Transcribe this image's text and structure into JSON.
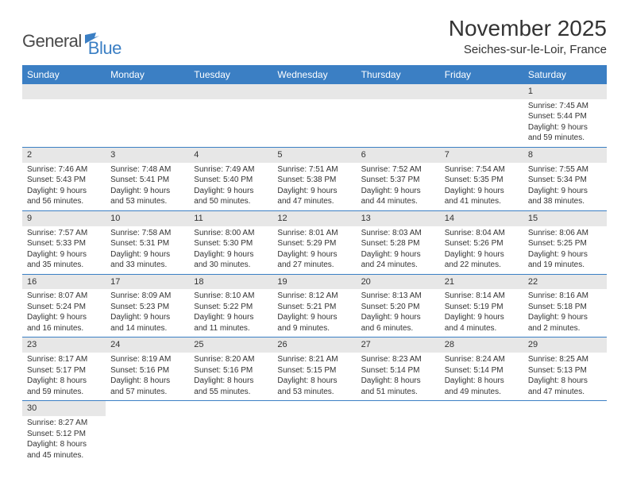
{
  "logo": {
    "text1": "General",
    "text2": "Blue"
  },
  "title": "November 2025",
  "location": "Seiches-sur-le-Loir, France",
  "colors": {
    "header_bg": "#3b7fc4",
    "header_text": "#ffffff",
    "daynum_bg": "#e7e7e7",
    "border": "#3b7fc4",
    "text": "#333333",
    "background": "#ffffff"
  },
  "typography": {
    "title_fontsize": 28,
    "location_fontsize": 15,
    "header_fontsize": 12,
    "daynum_fontsize": 11,
    "cell_fontsize": 10
  },
  "days_of_week": [
    "Sunday",
    "Monday",
    "Tuesday",
    "Wednesday",
    "Thursday",
    "Friday",
    "Saturday"
  ],
  "weeks": [
    [
      null,
      null,
      null,
      null,
      null,
      null,
      {
        "n": "1",
        "sunrise": "Sunrise: 7:45 AM",
        "sunset": "Sunset: 5:44 PM",
        "daylight": "Daylight: 9 hours and 59 minutes."
      }
    ],
    [
      {
        "n": "2",
        "sunrise": "Sunrise: 7:46 AM",
        "sunset": "Sunset: 5:43 PM",
        "daylight": "Daylight: 9 hours and 56 minutes."
      },
      {
        "n": "3",
        "sunrise": "Sunrise: 7:48 AM",
        "sunset": "Sunset: 5:41 PM",
        "daylight": "Daylight: 9 hours and 53 minutes."
      },
      {
        "n": "4",
        "sunrise": "Sunrise: 7:49 AM",
        "sunset": "Sunset: 5:40 PM",
        "daylight": "Daylight: 9 hours and 50 minutes."
      },
      {
        "n": "5",
        "sunrise": "Sunrise: 7:51 AM",
        "sunset": "Sunset: 5:38 PM",
        "daylight": "Daylight: 9 hours and 47 minutes."
      },
      {
        "n": "6",
        "sunrise": "Sunrise: 7:52 AM",
        "sunset": "Sunset: 5:37 PM",
        "daylight": "Daylight: 9 hours and 44 minutes."
      },
      {
        "n": "7",
        "sunrise": "Sunrise: 7:54 AM",
        "sunset": "Sunset: 5:35 PM",
        "daylight": "Daylight: 9 hours and 41 minutes."
      },
      {
        "n": "8",
        "sunrise": "Sunrise: 7:55 AM",
        "sunset": "Sunset: 5:34 PM",
        "daylight": "Daylight: 9 hours and 38 minutes."
      }
    ],
    [
      {
        "n": "9",
        "sunrise": "Sunrise: 7:57 AM",
        "sunset": "Sunset: 5:33 PM",
        "daylight": "Daylight: 9 hours and 35 minutes."
      },
      {
        "n": "10",
        "sunrise": "Sunrise: 7:58 AM",
        "sunset": "Sunset: 5:31 PM",
        "daylight": "Daylight: 9 hours and 33 minutes."
      },
      {
        "n": "11",
        "sunrise": "Sunrise: 8:00 AM",
        "sunset": "Sunset: 5:30 PM",
        "daylight": "Daylight: 9 hours and 30 minutes."
      },
      {
        "n": "12",
        "sunrise": "Sunrise: 8:01 AM",
        "sunset": "Sunset: 5:29 PM",
        "daylight": "Daylight: 9 hours and 27 minutes."
      },
      {
        "n": "13",
        "sunrise": "Sunrise: 8:03 AM",
        "sunset": "Sunset: 5:28 PM",
        "daylight": "Daylight: 9 hours and 24 minutes."
      },
      {
        "n": "14",
        "sunrise": "Sunrise: 8:04 AM",
        "sunset": "Sunset: 5:26 PM",
        "daylight": "Daylight: 9 hours and 22 minutes."
      },
      {
        "n": "15",
        "sunrise": "Sunrise: 8:06 AM",
        "sunset": "Sunset: 5:25 PM",
        "daylight": "Daylight: 9 hours and 19 minutes."
      }
    ],
    [
      {
        "n": "16",
        "sunrise": "Sunrise: 8:07 AM",
        "sunset": "Sunset: 5:24 PM",
        "daylight": "Daylight: 9 hours and 16 minutes."
      },
      {
        "n": "17",
        "sunrise": "Sunrise: 8:09 AM",
        "sunset": "Sunset: 5:23 PM",
        "daylight": "Daylight: 9 hours and 14 minutes."
      },
      {
        "n": "18",
        "sunrise": "Sunrise: 8:10 AM",
        "sunset": "Sunset: 5:22 PM",
        "daylight": "Daylight: 9 hours and 11 minutes."
      },
      {
        "n": "19",
        "sunrise": "Sunrise: 8:12 AM",
        "sunset": "Sunset: 5:21 PM",
        "daylight": "Daylight: 9 hours and 9 minutes."
      },
      {
        "n": "20",
        "sunrise": "Sunrise: 8:13 AM",
        "sunset": "Sunset: 5:20 PM",
        "daylight": "Daylight: 9 hours and 6 minutes."
      },
      {
        "n": "21",
        "sunrise": "Sunrise: 8:14 AM",
        "sunset": "Sunset: 5:19 PM",
        "daylight": "Daylight: 9 hours and 4 minutes."
      },
      {
        "n": "22",
        "sunrise": "Sunrise: 8:16 AM",
        "sunset": "Sunset: 5:18 PM",
        "daylight": "Daylight: 9 hours and 2 minutes."
      }
    ],
    [
      {
        "n": "23",
        "sunrise": "Sunrise: 8:17 AM",
        "sunset": "Sunset: 5:17 PM",
        "daylight": "Daylight: 8 hours and 59 minutes."
      },
      {
        "n": "24",
        "sunrise": "Sunrise: 8:19 AM",
        "sunset": "Sunset: 5:16 PM",
        "daylight": "Daylight: 8 hours and 57 minutes."
      },
      {
        "n": "25",
        "sunrise": "Sunrise: 8:20 AM",
        "sunset": "Sunset: 5:16 PM",
        "daylight": "Daylight: 8 hours and 55 minutes."
      },
      {
        "n": "26",
        "sunrise": "Sunrise: 8:21 AM",
        "sunset": "Sunset: 5:15 PM",
        "daylight": "Daylight: 8 hours and 53 minutes."
      },
      {
        "n": "27",
        "sunrise": "Sunrise: 8:23 AM",
        "sunset": "Sunset: 5:14 PM",
        "daylight": "Daylight: 8 hours and 51 minutes."
      },
      {
        "n": "28",
        "sunrise": "Sunrise: 8:24 AM",
        "sunset": "Sunset: 5:14 PM",
        "daylight": "Daylight: 8 hours and 49 minutes."
      },
      {
        "n": "29",
        "sunrise": "Sunrise: 8:25 AM",
        "sunset": "Sunset: 5:13 PM",
        "daylight": "Daylight: 8 hours and 47 minutes."
      }
    ],
    [
      {
        "n": "30",
        "sunrise": "Sunrise: 8:27 AM",
        "sunset": "Sunset: 5:12 PM",
        "daylight": "Daylight: 8 hours and 45 minutes."
      },
      null,
      null,
      null,
      null,
      null,
      null
    ]
  ]
}
